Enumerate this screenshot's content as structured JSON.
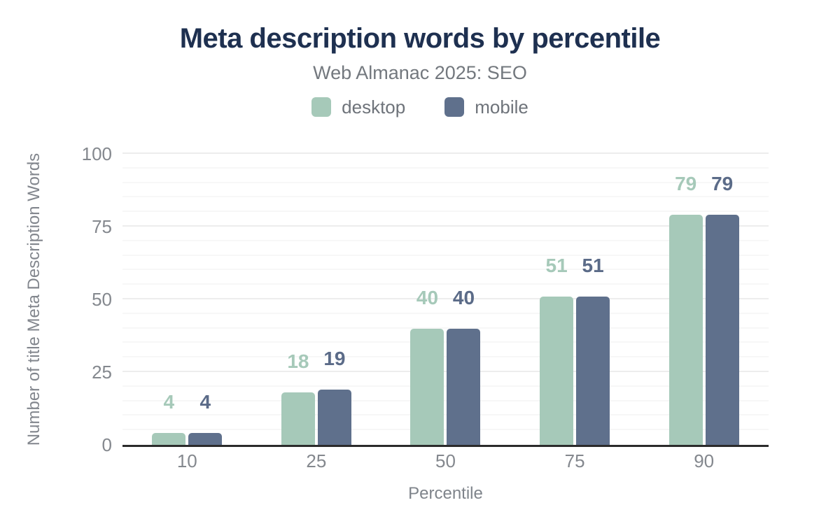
{
  "header": {
    "title": "Meta description words by percentile",
    "subtitle": "Web Almanac 2025: SEO"
  },
  "legend": [
    {
      "name": "desktop",
      "label": "desktop",
      "color": "#a6c9b9"
    },
    {
      "name": "mobile",
      "label": "mobile",
      "color": "#5f708c"
    }
  ],
  "chart_data": {
    "type": "bar",
    "title": "Meta description words by percentile",
    "subtitle": "Web Almanac 2025: SEO",
    "categories": [
      "10",
      "25",
      "50",
      "75",
      "90"
    ],
    "series": [
      {
        "name": "desktop",
        "color": "#a6c9b9",
        "label_color": "#a6c9b9",
        "values": [
          4,
          18,
          40,
          51,
          79
        ]
      },
      {
        "name": "mobile",
        "color": "#5f708c",
        "label_color": "#5b6b88",
        "values": [
          4,
          19,
          40,
          51,
          79
        ]
      }
    ],
    "xlabel": "Percentile",
    "ylabel": "Number of title Meta Description Words",
    "ylim": [
      0,
      100
    ],
    "yticks": [
      0,
      25,
      50,
      75,
      100
    ],
    "grid": {
      "minor_step": 5,
      "major_step": 25,
      "minor_color": "#f7f7f7",
      "major_color": "#ededed"
    },
    "legend_position": "top",
    "show_value_labels": true
  },
  "colors": {
    "title": "#1e3050",
    "subtitle": "#73787e",
    "tick_text": "#84888e",
    "axis_title_text": "#7f848b",
    "axis_line": "#2b2b2b",
    "background": "#ffffff"
  }
}
